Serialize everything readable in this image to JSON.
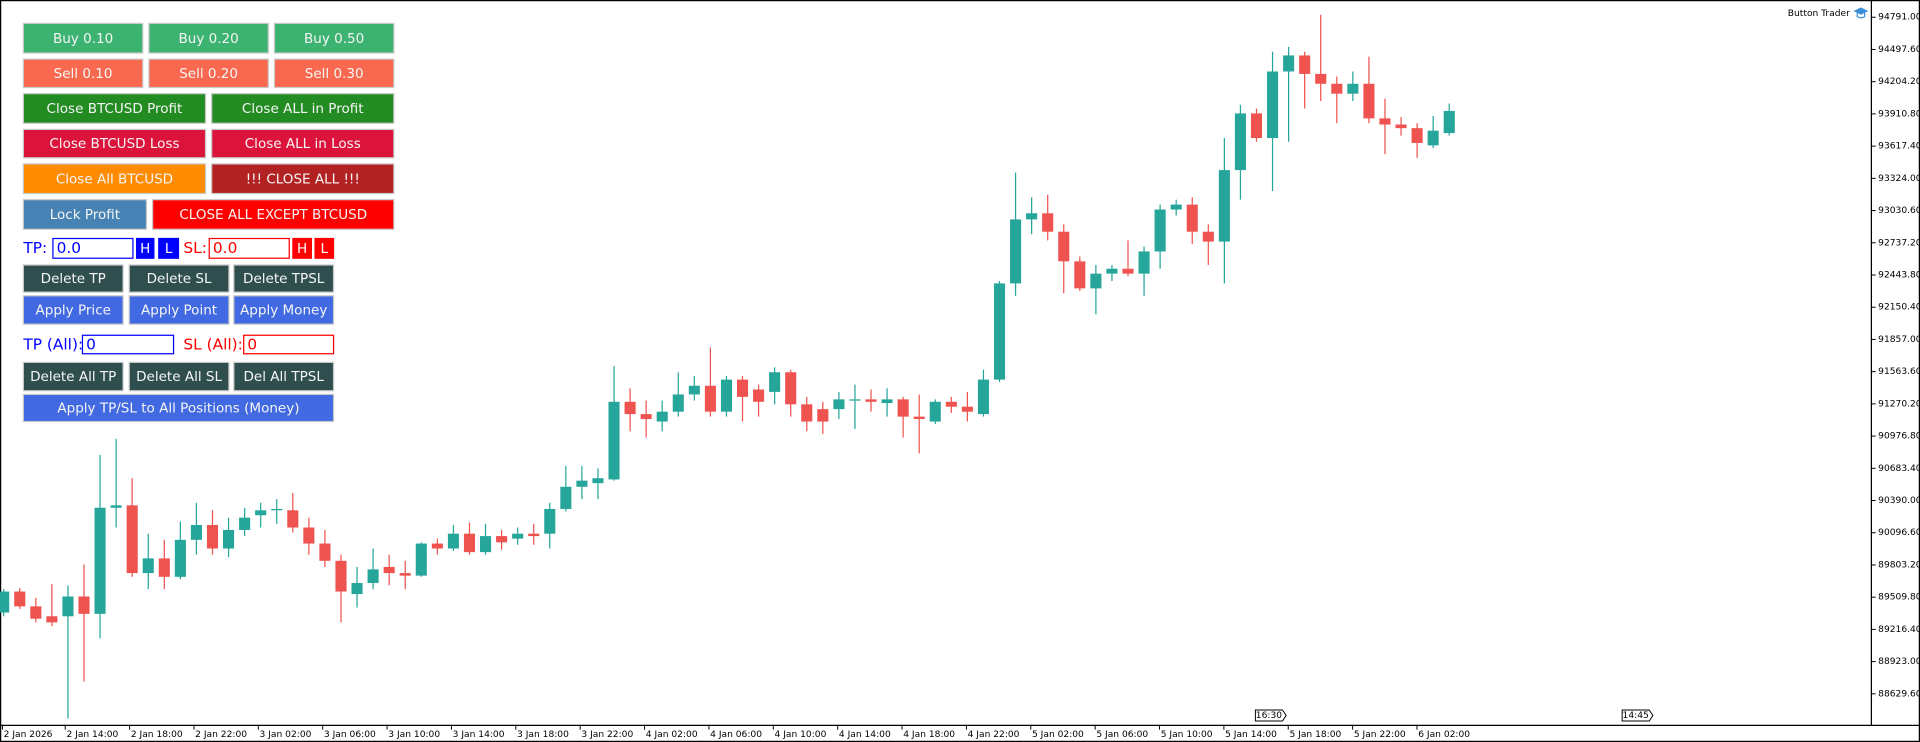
{
  "indicator_name": "Button Trader",
  "panel": {
    "buy": [
      "Buy 0.10",
      "Buy 0.20",
      "Buy 0.50"
    ],
    "sell": [
      "Sell 0.10",
      "Sell 0.20",
      "Sell 0.30"
    ],
    "close_profit": [
      "Close BTCUSD Profit",
      "Close ALL in Profit"
    ],
    "close_loss": [
      "Close BTCUSD Loss",
      "Close ALL in Loss"
    ],
    "close_all": [
      "Close All BTCUSD",
      "!!! CLOSE ALL !!!"
    ],
    "lock_profit": "Lock Profit",
    "close_except": "CLOSE ALL EXCEPT BTCUSD",
    "tp_label": "TP:",
    "tp_value": "0.0",
    "sl_label": "SL:",
    "sl_value": "0.0",
    "high": "H",
    "low": "L",
    "delete": [
      "Delete TP",
      "Delete SL",
      "Delete TPSL"
    ],
    "apply": [
      "Apply Price",
      "Apply Point",
      "Apply Money"
    ],
    "tp_all_label": "TP (All):",
    "tp_all_value": "0",
    "sl_all_label": "SL (All):",
    "sl_all_value": "0",
    "delete_all": [
      "Delete All TP",
      "Delete All SL",
      "Del All TPSL"
    ],
    "apply_all": "Apply TP/SL to All Positions (Money)"
  },
  "chart_data": {
    "type": "candlestick",
    "up_color": "#26a69a",
    "down_color": "#ef5350",
    "ylim": [
      88348,
      94948
    ],
    "yticks": [
      {
        "value": 94791.0,
        "label": "94791.00"
      },
      {
        "value": 94497.6,
        "label": "94497.60"
      },
      {
        "value": 94204.2,
        "label": "94204.20"
      },
      {
        "value": 93910.8,
        "label": "93910.80"
      },
      {
        "value": 93617.4,
        "label": "93617.40"
      },
      {
        "value": 93324.0,
        "label": "93324.00"
      },
      {
        "value": 93030.6,
        "label": "93030.60"
      },
      {
        "value": 92737.2,
        "label": "92737.20"
      },
      {
        "value": 92443.8,
        "label": "92443.80"
      },
      {
        "value": 92150.4,
        "label": "92150.40"
      },
      {
        "value": 91857.0,
        "label": "91857.00"
      },
      {
        "value": 91563.6,
        "label": "91563.60"
      },
      {
        "value": 91270.2,
        "label": "91270.20"
      },
      {
        "value": 90976.8,
        "label": "90976.80"
      },
      {
        "value": 90683.4,
        "label": "90683.40"
      },
      {
        "value": 90390.0,
        "label": "90390.00"
      },
      {
        "value": 90096.6,
        "label": "90096.60"
      },
      {
        "value": 89803.2,
        "label": "89803.20"
      },
      {
        "value": 89509.8,
        "label": "89509.80"
      },
      {
        "value": 89216.4,
        "label": "89216.40"
      },
      {
        "value": 88923.0,
        "label": "88923.00"
      },
      {
        "value": 88629.6,
        "label": "88629.60"
      }
    ],
    "x_labels": [
      "2 Jan 2026",
      "2 Jan 14:00",
      "2 Jan 18:00",
      "2 Jan 22:00",
      "3 Jan 02:00",
      "3 Jan 06:00",
      "3 Jan 10:00",
      "3 Jan 14:00",
      "3 Jan 18:00",
      "3 Jan 22:00",
      "4 Jan 02:00",
      "4 Jan 06:00",
      "4 Jan 10:00",
      "4 Jan 14:00",
      "4 Jan 18:00",
      "4 Jan 22:00",
      "5 Jan 02:00",
      "5 Jan 06:00",
      "5 Jan 10:00",
      "5 Jan 14:00",
      "5 Jan 18:00",
      "5 Jan 22:00",
      "6 Jan 02:00"
    ],
    "time_markers": [
      "16:30",
      "14:45"
    ],
    "open": [
      89370,
      89561,
      89426,
      89336,
      89336,
      89516,
      89358,
      90324,
      90346,
      89729,
      89863,
      89695,
      90032,
      90167,
      89953,
      90122,
      90256,
      90301,
      90301,
      90144,
      89998,
      89841,
      89538,
      89639,
      89785,
      89729,
      89706,
      89998,
      89953,
      90088,
      89920,
      90066,
      90043,
      90088,
      90088,
      90313,
      90515,
      90548,
      90582,
      91289,
      91177,
      91109,
      91199,
      91356,
      91435,
      91199,
      91491,
      91401,
      91379,
      91558,
      91266,
      91222,
      91222,
      91300,
      91311,
      91278,
      91311,
      91154,
      91109,
      91289,
      91244,
      91177,
      91491,
      92367,
      92950,
      93006,
      92838,
      92568,
      92322,
      92456,
      92501,
      92456,
      92658,
      93040,
      93085,
      92838,
      92748,
      93399,
      93915,
      93691,
      94297,
      94443,
      94275,
      94185,
      94095,
      94185,
      93870,
      93814,
      93781,
      93624,
      93736
    ],
    "high": [
      89583,
      89594,
      89504,
      89628,
      89617,
      89807,
      90806,
      90952,
      90593,
      90088,
      90032,
      90200,
      90369,
      90301,
      90234,
      90324,
      90369,
      90402,
      90458,
      90234,
      90122,
      89897,
      89785,
      89953,
      89897,
      89841,
      90009,
      90043,
      90167,
      90189,
      90178,
      90122,
      90144,
      90178,
      90369,
      90705,
      90705,
      90683,
      91614,
      91412,
      91300,
      91300,
      91558,
      91525,
      91783,
      91525,
      91525,
      91446,
      91603,
      91581,
      91334,
      91289,
      91379,
      91446,
      91401,
      91412,
      91334,
      91356,
      91311,
      91334,
      91379,
      91581,
      92389,
      93377,
      93152,
      93175,
      92905,
      92613,
      92535,
      92535,
      92759,
      92703,
      93085,
      93130,
      93152,
      92905,
      93691,
      93994,
      93960,
      94477,
      94521,
      94477,
      94813,
      94252,
      94297,
      94432,
      94050,
      93882,
      93826,
      93893,
      94005
    ],
    "low": [
      89336,
      89403,
      89280,
      89246,
      88404,
      88741,
      89134,
      90144,
      89695,
      89583,
      89583,
      89673,
      89897,
      89897,
      89875,
      90066,
      90144,
      90178,
      90099,
      89897,
      89785,
      89280,
      89415,
      89583,
      89617,
      89583,
      89695,
      89897,
      89931,
      89897,
      89897,
      89942,
      89987,
      89987,
      89953,
      90290,
      90402,
      90402,
      90571,
      91020,
      90963,
      91020,
      91154,
      91300,
      91154,
      91154,
      91109,
      91154,
      91266,
      91154,
      91020,
      90997,
      91132,
      91042,
      91199,
      91154,
      90963,
      90818,
      91087,
      91188,
      91109,
      91154,
      91469,
      92254,
      92815,
      92759,
      92277,
      92299,
      92086,
      92389,
      92434,
      92254,
      92501,
      92984,
      92726,
      92535,
      92367,
      93130,
      93657,
      93208,
      93657,
      93960,
      94028,
      93826,
      94028,
      93826,
      93545,
      93713,
      93511,
      93601,
      93713
    ],
    "close": [
      89561,
      89426,
      89314,
      89280,
      89516,
      89358,
      90324,
      90346,
      89729,
      89863,
      89695,
      90032,
      90167,
      89953,
      90122,
      90234,
      90301,
      90313,
      90144,
      89998,
      89841,
      89561,
      89639,
      89763,
      89729,
      89706,
      89998,
      89953,
      90088,
      89920,
      90066,
      90009,
      90088,
      90066,
      90313,
      90515,
      90571,
      90593,
      91289,
      91177,
      91132,
      91199,
      91356,
      91435,
      91199,
      91491,
      91334,
      91289,
      91558,
      91266,
      91109,
      91109,
      91311,
      91311,
      91289,
      91311,
      91154,
      91132,
      91289,
      91244,
      91199,
      91491,
      92367,
      92950,
      93006,
      92838,
      92568,
      92322,
      92456,
      92501,
      92456,
      92658,
      93040,
      93085,
      92838,
      92748,
      93399,
      93915,
      93691,
      94297,
      94443,
      94275,
      94185,
      94095,
      94185,
      93870,
      93814,
      93781,
      93646,
      93758,
      93938
    ]
  }
}
